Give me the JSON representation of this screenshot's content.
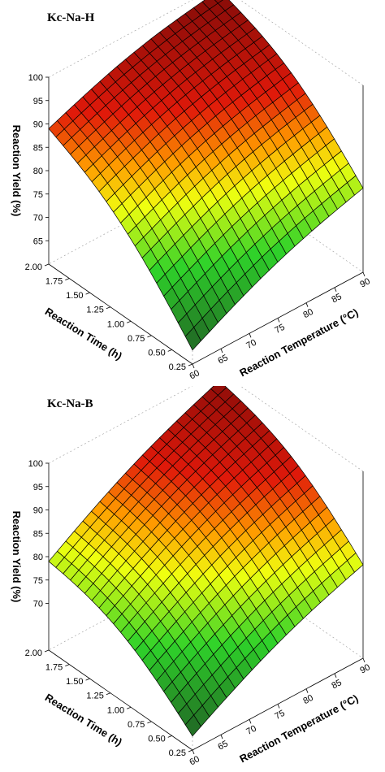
{
  "chart_data": [
    {
      "type": "surface3d",
      "title": "Kc-Na-H",
      "xlabel": "Reaction Temperature (°C)",
      "ylabel": "Reaction Time (h)",
      "zlabel": "Reaction Yield (%)",
      "xlim": [
        60,
        90
      ],
      "ylim": [
        0.25,
        2.0
      ],
      "zlim": [
        60,
        100
      ],
      "xticks": [
        "60",
        "65",
        "70",
        "75",
        "80",
        "85",
        "90"
      ],
      "yticks": [
        "0.25",
        "0.50",
        "0.75",
        "1.00",
        "1.25",
        "1.50",
        "1.75",
        "2.00"
      ],
      "zticks": [
        "65",
        "70",
        "75",
        "80",
        "85",
        "90",
        "95",
        "100"
      ],
      "corners": {
        "t60_h0.25": 63,
        "t60_h2.00": 89,
        "t90_h0.25": 78,
        "t90_h2.00": 99
      },
      "grid": true
    },
    {
      "type": "surface3d",
      "title": "Kc-Na-B",
      "xlabel": "Reaction Temperature (°C)",
      "ylabel": "Reaction Time (h)",
      "zlabel": "Reaction Yield (%)",
      "xlim": [
        60,
        90
      ],
      "ylim": [
        0.25,
        2.0
      ],
      "zlim": [
        60,
        100
      ],
      "xticks": [
        "60",
        "65",
        "70",
        "75",
        "80",
        "85",
        "90"
      ],
      "yticks": [
        "0.25",
        "0.50",
        "0.75",
        "1.00",
        "1.25",
        "1.50",
        "1.75",
        "2.00"
      ],
      "zticks": [
        "70",
        "75",
        "80",
        "85",
        "90",
        "95",
        "100"
      ],
      "corners": {
        "t60_h0.25": 63,
        "t60_h2.00": 79,
        "t90_h0.25": 80,
        "t90_h2.00": 98
      },
      "grid": true
    }
  ],
  "colors": {
    "low": "#1f5a24",
    "mid_green": "#2fd22a",
    "yellow": "#f0ff10",
    "orange": "#ff9a00",
    "red": "#e0190a",
    "high": "#7a0a08",
    "mesh": "#000000"
  }
}
